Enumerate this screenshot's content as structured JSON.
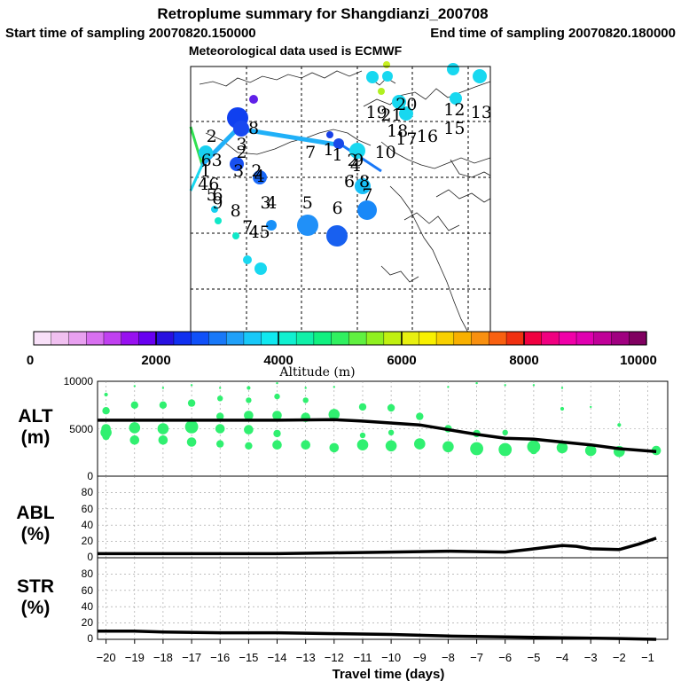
{
  "header": {
    "title": "Retroplume summary for Shangdianzi_200708",
    "start_label": "Start time of sampling 20070820.150000",
    "end_label": "End time of sampling 20070820.180000",
    "met_label": "Meteorological data used is ECMWF"
  },
  "colorbar": {
    "title": "Altitude (m)",
    "ticks": [
      "0",
      "2000",
      "4000",
      "6000",
      "8000",
      "10000"
    ],
    "min": 0,
    "max": 10000,
    "colors": [
      "#f8e0f8",
      "#f0c0f0",
      "#e8a0f0",
      "#d870f0",
      "#c040f0",
      "#9810f0",
      "#6800f0",
      "#2810e0",
      "#1030f0",
      "#1050f8",
      "#1878f8",
      "#20a0f8",
      "#18c8f8",
      "#10e8f0",
      "#10f0d0",
      "#10f0a8",
      "#10f080",
      "#30f060",
      "#60f040",
      "#90f020",
      "#c0f010",
      "#e8f010",
      "#f8f000",
      "#f8d000",
      "#f8b000",
      "#f89010",
      "#f86010",
      "#f03010",
      "#f00040",
      "#f00080",
      "#f000a8",
      "#e000b0",
      "#c00098",
      "#a00080",
      "#800060"
    ]
  },
  "map": {
    "gridline_color": "#000000",
    "labels": [
      {
        "text": "20",
        "lon": 0.72,
        "lat": 0.03,
        "altitude": 6500
      },
      {
        "text": "19",
        "lon": 0.62,
        "lat": 0.06,
        "altitude": 4200
      },
      {
        "text": "21",
        "lon": 0.67,
        "lat": 0.07,
        "altitude": 3800
      },
      {
        "text": "12",
        "lon": 0.88,
        "lat": 0.05,
        "altitude": 3800
      },
      {
        "text": "13",
        "lon": 0.97,
        "lat": 0.06,
        "altitude": 3800
      },
      {
        "text": "8",
        "lon": 0.21,
        "lat": 0.12,
        "altitude": 1500
      },
      {
        "text": "2",
        "lon": 0.07,
        "lat": 0.15,
        "altitude": 3500
      },
      {
        "text": "18",
        "lon": 0.69,
        "lat": 0.13,
        "altitude": 3800
      },
      {
        "text": "15",
        "lon": 0.88,
        "lat": 0.12,
        "altitude": 3800
      },
      {
        "text": "17",
        "lon": 0.72,
        "lat": 0.16,
        "altitude": 3800
      },
      {
        "text": "16",
        "lon": 0.79,
        "lat": 0.15,
        "altitude": 3800
      },
      {
        "text": "3",
        "lon": 0.17,
        "lat": 0.18,
        "altitude": 2000
      },
      {
        "text": "2",
        "lon": 0.17,
        "lat": 0.21,
        "altitude": 2000
      },
      {
        "text": "7",
        "lon": 0.4,
        "lat": 0.21,
        "altitude": 5000
      },
      {
        "text": "1",
        "lon": 0.46,
        "lat": 0.2,
        "altitude": 2200
      },
      {
        "text": "1",
        "lon": 0.49,
        "lat": 0.22,
        "altitude": 2200
      },
      {
        "text": "10",
        "lon": 0.65,
        "lat": 0.21,
        "altitude": 3800
      },
      {
        "text": "2",
        "lon": 0.54,
        "lat": 0.24,
        "altitude": 2200
      },
      {
        "text": "9",
        "lon": 0.56,
        "lat": 0.24,
        "altitude": 3800
      },
      {
        "text": "63",
        "lon": 0.07,
        "lat": 0.24,
        "altitude": 3500
      },
      {
        "text": "4",
        "lon": 0.55,
        "lat": 0.26,
        "altitude": 2200
      },
      {
        "text": "1",
        "lon": 0.05,
        "lat": 0.28,
        "altitude": 4000
      },
      {
        "text": "3",
        "lon": 0.16,
        "lat": 0.28,
        "altitude": 2200
      },
      {
        "text": "2",
        "lon": 0.22,
        "lat": 0.28,
        "altitude": 2500
      },
      {
        "text": "4",
        "lon": 0.23,
        "lat": 0.3,
        "altitude": 2500
      },
      {
        "text": "6",
        "lon": 0.53,
        "lat": 0.32,
        "altitude": 3800
      },
      {
        "text": "8",
        "lon": 0.58,
        "lat": 0.32,
        "altitude": 3800
      },
      {
        "text": "46",
        "lon": 0.06,
        "lat": 0.33,
        "altitude": 3800
      },
      {
        "text": "5",
        "lon": 0.07,
        "lat": 0.37,
        "altitude": 4000
      },
      {
        "text": "7",
        "lon": 0.59,
        "lat": 0.37,
        "altitude": 3500
      },
      {
        "text": "6",
        "lon": 0.09,
        "lat": 0.37,
        "altitude": 4000
      },
      {
        "text": "9",
        "lon": 0.09,
        "lat": 0.4,
        "altitude": 3800
      },
      {
        "text": "3",
        "lon": 0.25,
        "lat": 0.4,
        "altitude": 4000
      },
      {
        "text": "4",
        "lon": 0.27,
        "lat": 0.4,
        "altitude": 3500
      },
      {
        "text": "5",
        "lon": 0.39,
        "lat": 0.4,
        "altitude": 3000
      },
      {
        "text": "6",
        "lon": 0.49,
        "lat": 0.42,
        "altitude": 2800
      },
      {
        "text": "8",
        "lon": 0.15,
        "lat": 0.43,
        "altitude": 4500
      },
      {
        "text": "7",
        "lon": 0.19,
        "lat": 0.49,
        "altitude": 4000
      },
      {
        "text": "45",
        "lon": 0.23,
        "lat": 0.51,
        "altitude": 3800
      }
    ]
  },
  "chart_data": [
    {
      "type": "line",
      "panel": "ALT",
      "ylabel_lines": [
        "ALT",
        "(m)"
      ],
      "y_ticks": [
        "10000",
        "5000",
        "0"
      ],
      "ylim": [
        0,
        10000
      ],
      "x": [
        -20.3,
        -18,
        -16,
        -14,
        -12,
        -11,
        -9,
        -7,
        -6,
        -5,
        -4,
        -3,
        -2,
        -0.7
      ],
      "series": [
        {
          "name": "median altitude",
          "values": [
            5900,
            5900,
            5900,
            5900,
            5950,
            5800,
            5400,
            4400,
            4000,
            3900,
            3600,
            3300,
            2900,
            2600
          ]
        }
      ],
      "scatter": {
        "name": "plume altitude distribution",
        "points": [
          {
            "x": -20,
            "y": 8600,
            "size": 2
          },
          {
            "x": -20,
            "y": 6900,
            "size": 4
          },
          {
            "x": -20,
            "y": 5000,
            "size": 5
          },
          {
            "x": -20,
            "y": 4600,
            "size": 6
          },
          {
            "x": -20,
            "y": 4200,
            "size": 4
          },
          {
            "x": -19,
            "y": 9500,
            "size": 1
          },
          {
            "x": -19,
            "y": 7500,
            "size": 4
          },
          {
            "x": -19,
            "y": 5100,
            "size": 6
          },
          {
            "x": -19,
            "y": 3800,
            "size": 5
          },
          {
            "x": -18,
            "y": 9300,
            "size": 1
          },
          {
            "x": -18,
            "y": 7500,
            "size": 4
          },
          {
            "x": -18,
            "y": 5000,
            "size": 6
          },
          {
            "x": -18,
            "y": 3800,
            "size": 5
          },
          {
            "x": -17,
            "y": 9600,
            "size": 1
          },
          {
            "x": -17,
            "y": 7700,
            "size": 4
          },
          {
            "x": -17,
            "y": 5200,
            "size": 7
          },
          {
            "x": -17,
            "y": 3600,
            "size": 5
          },
          {
            "x": -16,
            "y": 9300,
            "size": 1
          },
          {
            "x": -16,
            "y": 8200,
            "size": 3
          },
          {
            "x": -16,
            "y": 6300,
            "size": 4
          },
          {
            "x": -16,
            "y": 5000,
            "size": 5
          },
          {
            "x": -16,
            "y": 3400,
            "size": 4
          },
          {
            "x": -15,
            "y": 9300,
            "size": 2
          },
          {
            "x": -15,
            "y": 8000,
            "size": 3
          },
          {
            "x": -15,
            "y": 6400,
            "size": 5
          },
          {
            "x": -15,
            "y": 4900,
            "size": 5
          },
          {
            "x": -15,
            "y": 3200,
            "size": 4
          },
          {
            "x": -14,
            "y": 9800,
            "size": 1
          },
          {
            "x": -14,
            "y": 8400,
            "size": 3
          },
          {
            "x": -14,
            "y": 6400,
            "size": 5
          },
          {
            "x": -14,
            "y": 4500,
            "size": 4
          },
          {
            "x": -14,
            "y": 3300,
            "size": 5
          },
          {
            "x": -13,
            "y": 9300,
            "size": 1
          },
          {
            "x": -13,
            "y": 8000,
            "size": 3
          },
          {
            "x": -13,
            "y": 6200,
            "size": 5
          },
          {
            "x": -13,
            "y": 3300,
            "size": 5
          },
          {
            "x": -12,
            "y": 9400,
            "size": 1
          },
          {
            "x": -12,
            "y": 6500,
            "size": 6
          },
          {
            "x": -12,
            "y": 3000,
            "size": 5
          },
          {
            "x": -11,
            "y": 7300,
            "size": 4
          },
          {
            "x": -11,
            "y": 4300,
            "size": 3
          },
          {
            "x": -11,
            "y": 3300,
            "size": 6
          },
          {
            "x": -10,
            "y": 7200,
            "size": 4
          },
          {
            "x": -10,
            "y": 4600,
            "size": 3
          },
          {
            "x": -10,
            "y": 3200,
            "size": 6
          },
          {
            "x": -9,
            "y": 6300,
            "size": 4
          },
          {
            "x": -9,
            "y": 3400,
            "size": 6
          },
          {
            "x": -8,
            "y": 9400,
            "size": 1
          },
          {
            "x": -8,
            "y": 5000,
            "size": 4
          },
          {
            "x": -8,
            "y": 3100,
            "size": 6
          },
          {
            "x": -7,
            "y": 9800,
            "size": 1
          },
          {
            "x": -7,
            "y": 4500,
            "size": 4
          },
          {
            "x": -7,
            "y": 2900,
            "size": 7
          },
          {
            "x": -6,
            "y": 9600,
            "size": 1
          },
          {
            "x": -6,
            "y": 4600,
            "size": 3
          },
          {
            "x": -6,
            "y": 2800,
            "size": 7
          },
          {
            "x": -5,
            "y": 9600,
            "size": 1
          },
          {
            "x": -5,
            "y": 3100,
            "size": 7
          },
          {
            "x": -5,
            "y": 2700,
            "size": 4
          },
          {
            "x": -4,
            "y": 9300,
            "size": 1
          },
          {
            "x": -4,
            "y": 7100,
            "size": 2
          },
          {
            "x": -4,
            "y": 3000,
            "size": 6
          },
          {
            "x": -3,
            "y": 7300,
            "size": 1
          },
          {
            "x": -3,
            "y": 2700,
            "size": 6
          },
          {
            "x": -2,
            "y": 5400,
            "size": 2
          },
          {
            "x": -2,
            "y": 2600,
            "size": 6
          },
          {
            "x": -0.7,
            "y": 2700,
            "size": 5
          }
        ]
      }
    },
    {
      "type": "line",
      "panel": "ABL",
      "ylabel_lines": [
        "ABL",
        "(%)"
      ],
      "y_ticks": [
        "80",
        "60",
        "40",
        "20",
        "0"
      ],
      "ylim": [
        0,
        100
      ],
      "x": [
        -20.3,
        -18,
        -16,
        -14,
        -12,
        -10,
        -8,
        -6,
        -5.2,
        -4.5,
        -4,
        -3.5,
        -3,
        -2,
        -1.3,
        -0.7
      ],
      "series": [
        {
          "name": "ABL fraction",
          "values": [
            5,
            5,
            5,
            5,
            6,
            7,
            8,
            7,
            10,
            13,
            15,
            14,
            11,
            10,
            17,
            24
          ]
        }
      ]
    },
    {
      "type": "line",
      "panel": "STR",
      "ylabel_lines": [
        "STR",
        "(%)"
      ],
      "y_ticks": [
        "80",
        "60",
        "40",
        "20",
        "0"
      ],
      "ylim": [
        0,
        100
      ],
      "x": [
        -20.3,
        -19,
        -18,
        -16,
        -14,
        -12,
        -10,
        -8,
        -6,
        -4,
        -2,
        -0.7
      ],
      "series": [
        {
          "name": "stratospheric fraction",
          "values": [
            10,
            10,
            9,
            8,
            8,
            7,
            6,
            4,
            3,
            2,
            1,
            0
          ]
        }
      ],
      "xlabel": "Travel time (days)",
      "x_ticks": [
        -20,
        -19,
        -18,
        -17,
        -16,
        -15,
        -14,
        -13,
        -12,
        -11,
        -10,
        -9,
        -8,
        -7,
        -6,
        -5,
        -4,
        -3,
        -2,
        -1
      ],
      "x_tick_labels": [
        "−20",
        "−19",
        "−18",
        "−17",
        "−16",
        "−15",
        "−14",
        "−13",
        "−12",
        "−11",
        "−10",
        "−9",
        "−8",
        "−7",
        "−6",
        "−5",
        "−4",
        "−3",
        "−2",
        "−1"
      ],
      "xlim": [
        -20.3,
        -0.3
      ]
    }
  ]
}
